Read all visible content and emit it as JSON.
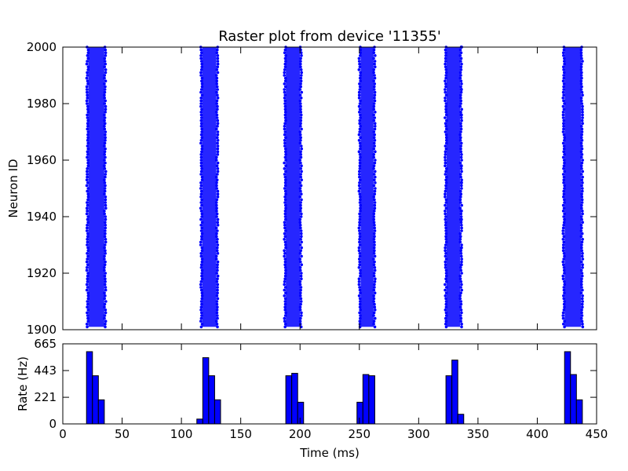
{
  "chart_data": [
    {
      "type": "scatter",
      "title": "Raster plot from device '11355'",
      "xlabel": "",
      "ylabel": "Neuron ID",
      "xlim": [
        0,
        450
      ],
      "ylim": [
        1900,
        2000
      ],
      "yticks": [
        "1900",
        "1920",
        "1940",
        "1960",
        "1980",
        "2000"
      ],
      "grid": false,
      "series": [
        {
          "color": "#0000ff",
          "bursts": [
            {
              "t_start": 21.5,
              "t_end": 35,
              "neuron_start": 1901,
              "neuron_end": 2000
            },
            {
              "t_start": 117.5,
              "t_end": 129.5,
              "neuron_start": 1901,
              "neuron_end": 2000
            },
            {
              "t_start": 188,
              "t_end": 200,
              "neuron_start": 1901,
              "neuron_end": 2000
            },
            {
              "t_start": 251,
              "t_end": 262,
              "neuron_start": 1901,
              "neuron_end": 2000
            },
            {
              "t_start": 323.5,
              "t_end": 335,
              "neuron_start": 1901,
              "neuron_end": 2000
            },
            {
              "t_start": 423,
              "t_end": 437,
              "neuron_start": 1901,
              "neuron_end": 2000
            }
          ],
          "late_spikes": [
            {
              "t": 336,
              "neuron": 2000
            },
            {
              "t": 336,
              "neuron": 1985
            },
            {
              "t": 336,
              "neuron": 1976
            },
            {
              "t": 336,
              "neuron": 1958
            },
            {
              "t": 336,
              "neuron": 1952
            },
            {
              "t": 336,
              "neuron": 1942
            },
            {
              "t": 336,
              "neuron": 1939
            },
            {
              "t": 336,
              "neuron": 1929
            },
            {
              "t": 336,
              "neuron": 1923
            }
          ]
        }
      ]
    },
    {
      "type": "bar",
      "title": "",
      "xlabel": "Time (ms)",
      "ylabel": "Rate (Hz)",
      "xlim": [
        0,
        450
      ],
      "ylim": [
        0,
        665
      ],
      "xticks": [
        "0",
        "50",
        "100",
        "150",
        "200",
        "250",
        "300",
        "350",
        "400",
        "450"
      ],
      "yticks": [
        "0",
        "221",
        "443",
        "665"
      ],
      "bin_width": 5,
      "color": "#0000ff",
      "bins": [
        {
          "x": 20,
          "value": 600
        },
        {
          "x": 25,
          "value": 400
        },
        {
          "x": 30,
          "value": 200
        },
        {
          "x": 113,
          "value": 40
        },
        {
          "x": 118,
          "value": 550
        },
        {
          "x": 123,
          "value": 400
        },
        {
          "x": 128,
          "value": 200
        },
        {
          "x": 188,
          "value": 400
        },
        {
          "x": 193,
          "value": 420
        },
        {
          "x": 198,
          "value": 180
        },
        {
          "x": 248,
          "value": 180
        },
        {
          "x": 253,
          "value": 410
        },
        {
          "x": 258,
          "value": 400
        },
        {
          "x": 323,
          "value": 400
        },
        {
          "x": 328,
          "value": 530
        },
        {
          "x": 333,
          "value": 80
        },
        {
          "x": 423,
          "value": 600
        },
        {
          "x": 428,
          "value": 410
        },
        {
          "x": 433,
          "value": 200
        }
      ]
    }
  ]
}
